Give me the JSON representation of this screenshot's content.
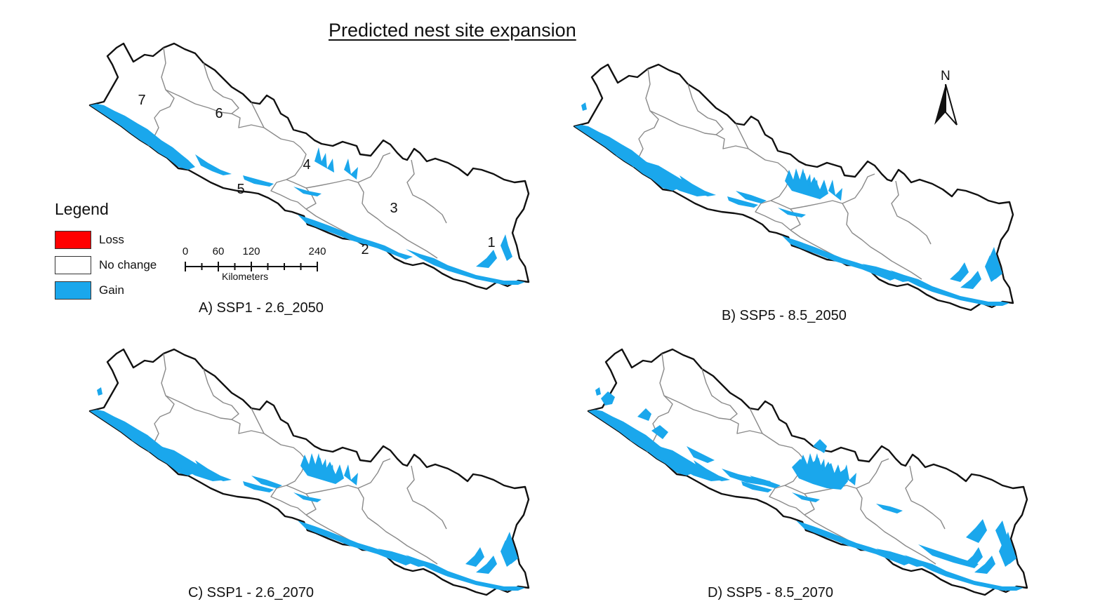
{
  "title": "Predicted nest site expansion",
  "colors": {
    "loss": "#ff0000",
    "no_change": "#ffffff",
    "gain": "#1aa7ec",
    "boundary": "#111111",
    "province_line": "#8a8a8a"
  },
  "legend": {
    "title": "Legend",
    "items": [
      {
        "label": "Loss",
        "color": "#ff0000"
      },
      {
        "label": "No change",
        "color": "#ffffff"
      },
      {
        "label": "Gain",
        "color": "#1aa7ec"
      }
    ]
  },
  "scale_bar": {
    "ticks": [
      "0",
      "60",
      "120",
      "240"
    ],
    "unit": "Kilometers"
  },
  "north_arrow": {
    "label": "N"
  },
  "province_labels": [
    "1",
    "2",
    "3",
    "4",
    "5",
    "6",
    "7"
  ],
  "panels": [
    {
      "caption": "A) SSP1 - 2.6_2050",
      "gain_level": 1
    },
    {
      "caption": "B) SSP5 - 8.5_2050",
      "gain_level": 2
    },
    {
      "caption": "C) SSP1 - 2.6_2070",
      "gain_level": 2
    },
    {
      "caption": "D) SSP5 - 8.5_2070",
      "gain_level": 3
    }
  ]
}
